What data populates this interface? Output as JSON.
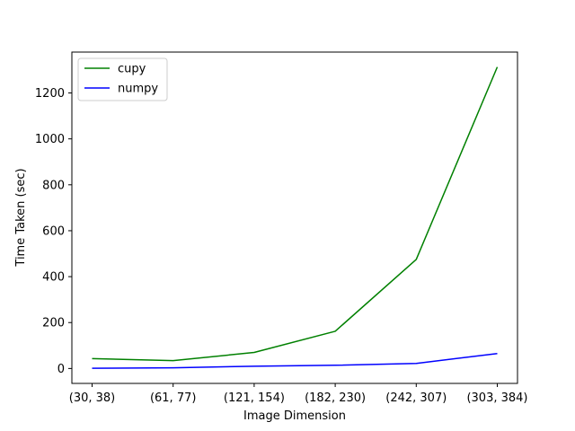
{
  "chart_data": {
    "type": "line",
    "title": "",
    "xlabel": "Image Dimension",
    "ylabel": "Time Taken (sec)",
    "categories": [
      "(30, 38)",
      "(61, 77)",
      "(121, 154)",
      "(182, 230)",
      "(242, 307)",
      "(303, 384)"
    ],
    "series": [
      {
        "name": "cupy",
        "color": "#008000",
        "values": [
          43,
          34,
          70,
          162,
          475,
          1313
        ]
      },
      {
        "name": "numpy",
        "color": "#0000ff",
        "values": [
          1,
          3,
          10,
          14,
          22,
          65
        ]
      }
    ],
    "ylim": [
      -65,
      1378
    ],
    "yticks": [
      0,
      200,
      400,
      600,
      800,
      1000,
      1200
    ],
    "grid": false,
    "legend_position": "top-left"
  }
}
